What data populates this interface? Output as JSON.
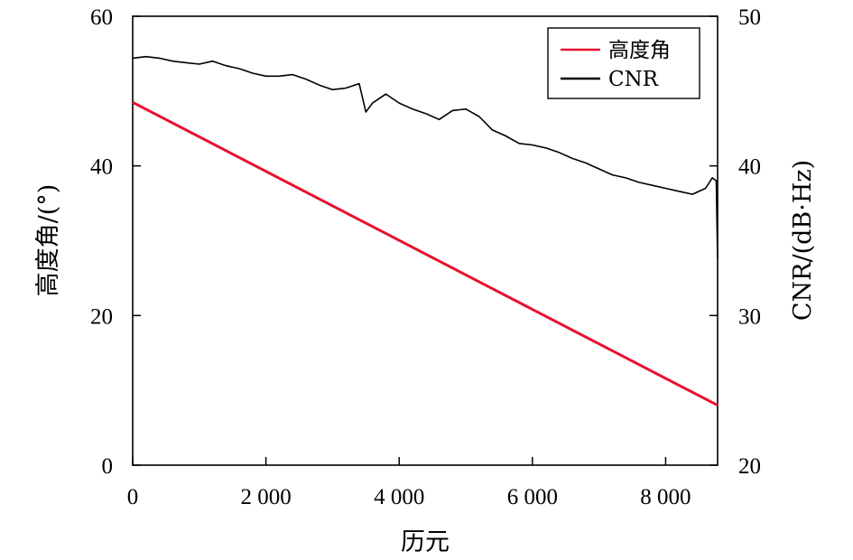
{
  "chart_data": {
    "type": "line",
    "title": "",
    "xlabel": "历元",
    "ylabel_left": "高度角/(°)",
    "ylabel_right": "CNR/(dB·Hz)",
    "xlim": [
      0,
      8780
    ],
    "ylim_left": [
      0,
      60
    ],
    "ylim_right": [
      20,
      50
    ],
    "x_ticks": [
      {
        "value": 0,
        "label": "0"
      },
      {
        "value": 2000,
        "label": "2 000"
      },
      {
        "value": 4000,
        "label": "4 000"
      },
      {
        "value": 6000,
        "label": "6 000"
      },
      {
        "value": 8000,
        "label": "8 000"
      }
    ],
    "y_left_ticks": [
      {
        "value": 0,
        "label": "0"
      },
      {
        "value": 20,
        "label": "20"
      },
      {
        "value": 40,
        "label": "40"
      },
      {
        "value": 60,
        "label": "60"
      }
    ],
    "y_right_ticks": [
      {
        "value": 20,
        "label": "20"
      },
      {
        "value": 30,
        "label": "30"
      },
      {
        "value": 40,
        "label": "40"
      },
      {
        "value": 50,
        "label": "50"
      }
    ],
    "legend_position": "top-right",
    "grid": false,
    "series": [
      {
        "name": "高度角",
        "axis": "left",
        "color": "#e8112d",
        "x": [
          0,
          8780
        ],
        "y": [
          48.5,
          8.0
        ]
      },
      {
        "name": "CNR",
        "axis": "right",
        "color": "#000000",
        "x": [
          0,
          200,
          400,
          600,
          800,
          1000,
          1200,
          1400,
          1600,
          1800,
          2000,
          2200,
          2400,
          2600,
          2800,
          3000,
          3200,
          3400,
          3500,
          3600,
          3800,
          4000,
          4200,
          4400,
          4600,
          4800,
          5000,
          5200,
          5400,
          5600,
          5800,
          6000,
          6200,
          6400,
          6600,
          6800,
          7000,
          7200,
          7400,
          7600,
          7800,
          8000,
          8200,
          8400,
          8600,
          8700,
          8760,
          8780
        ],
        "y": [
          47.2,
          47.3,
          47.2,
          47.0,
          46.9,
          46.8,
          47.0,
          46.7,
          46.5,
          46.2,
          46.0,
          46.0,
          46.1,
          45.8,
          45.4,
          45.1,
          45.2,
          45.5,
          43.6,
          44.2,
          44.8,
          44.2,
          43.8,
          43.5,
          43.1,
          43.7,
          43.8,
          43.3,
          42.4,
          42.0,
          41.5,
          41.4,
          41.2,
          40.9,
          40.5,
          40.2,
          39.8,
          39.4,
          39.2,
          38.9,
          38.7,
          38.5,
          38.3,
          38.1,
          38.5,
          39.2,
          39.0,
          33.8
        ]
      }
    ]
  }
}
